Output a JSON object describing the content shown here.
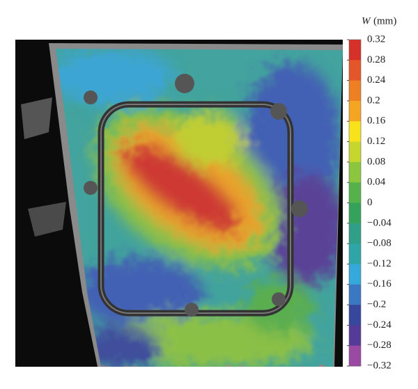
{
  "colorbar": {
    "title_symbol": "W",
    "title_unit": "(mm)",
    "range": [
      -0.32,
      0.32
    ],
    "ticks": [
      0.32,
      0.28,
      0.24,
      0.2,
      0.16,
      0.12,
      0.08,
      0.04,
      0,
      {
        "value": -0.04,
        "label": "−0.04"
      },
      {
        "value": -0.08,
        "label": "−0.08"
      },
      {
        "value": -0.12,
        "label": "−0.12"
      },
      {
        "value": -0.16,
        "label": "−0.16"
      },
      {
        "value": -0.2,
        "label": "−0.2"
      },
      {
        "value": -0.24,
        "label": "−0.24"
      },
      {
        "value": -0.28,
        "label": "−0.28"
      },
      {
        "value": -0.32,
        "label": "−0.32"
      }
    ],
    "colors": [
      "#d6302a",
      "#e4552a",
      "#ee7f22",
      "#f4a521",
      "#f7e21c",
      "#c6d62c",
      "#8cc63f",
      "#55b24a",
      "#35a25c",
      "#2f9f87",
      "#2ea6a8",
      "#35a8dc",
      "#3a78c4",
      "#37479e",
      "#553a98",
      "#9a4aa2"
    ]
  }
}
